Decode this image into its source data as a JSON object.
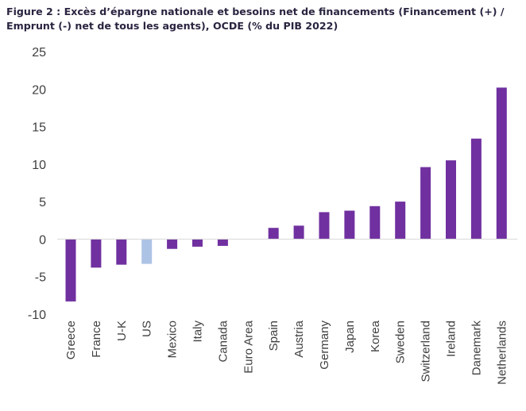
{
  "chart_data": {
    "type": "bar",
    "title": "Figure 2 : Excès d’épargne nationale et besoins net de financements (Financement (+) / Emprunt (-) net de tous les agents), OCDE (% du PIB 2022)",
    "xlabel": "",
    "ylabel": "",
    "ylim": [
      -10,
      25
    ],
    "yticks": [
      25,
      20,
      15,
      10,
      5,
      0,
      -5,
      -10
    ],
    "grid": false,
    "categories": [
      "Greece",
      "France",
      "U-K",
      "US",
      "Mexico",
      "Italy",
      "Canada",
      "Euro Area",
      "Spain",
      "Austria",
      "Germany",
      "Japan",
      "Korea",
      "Sweden",
      "Switzerland",
      "Ireland",
      "Danemark",
      "Netherlands"
    ],
    "values": [
      -8.3,
      -3.8,
      -3.4,
      -3.3,
      -1.3,
      -1.0,
      -0.9,
      0,
      1.5,
      1.8,
      3.6,
      3.8,
      4.4,
      5.0,
      9.6,
      10.5,
      13.4,
      20.2
    ],
    "colors": {
      "default": "#7030a0",
      "highlight": "#adc3e6",
      "axis": "#d9d9d9",
      "text": "#3f3f3f"
    },
    "highlight_categories": [
      "US"
    ]
  }
}
